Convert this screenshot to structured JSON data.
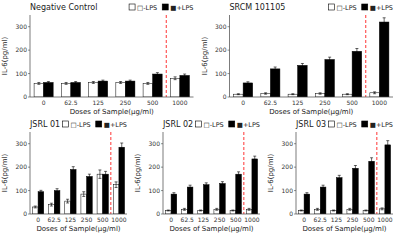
{
  "chart_data": [
    {
      "type": "bar",
      "title": "Negative Control",
      "xlabel": "Doses of Sample(μg/ml)",
      "ylabel": "IL-6(pg/ml)",
      "categories": [
        "0",
        "62.5",
        "125",
        "250",
        "500",
        "1000"
      ],
      "series": [
        {
          "name": "□-LPS",
          "color": "white",
          "values": [
            58,
            58,
            62,
            62,
            58,
            80
          ],
          "errors": [
            4,
            4,
            4,
            4,
            4,
            6
          ]
        },
        {
          "name": "■+LPS",
          "color": "black",
          "values": [
            62,
            62,
            68,
            68,
            98,
            92
          ],
          "errors": [
            4,
            4,
            4,
            4,
            6,
            6
          ]
        }
      ],
      "ylim": [
        0,
        350
      ],
      "yticks": [
        0,
        100,
        200,
        300
      ],
      "legend": "upper right"
    },
    {
      "type": "bar",
      "title": "SRCM 101105",
      "xlabel": "Doses of Sample(μg/ml)",
      "ylabel": "IL-6(pg/ml)",
      "categories": [
        "0",
        "62.5",
        "125",
        "250",
        "500",
        "1000"
      ],
      "series": [
        {
          "name": "□-LPS",
          "color": "white",
          "values": [
            12,
            15,
            12,
            15,
            12,
            18
          ],
          "errors": [
            2,
            3,
            2,
            3,
            2,
            4
          ]
        },
        {
          "name": "■+LPS",
          "color": "black",
          "values": [
            60,
            120,
            135,
            160,
            195,
            320
          ],
          "errors": [
            5,
            8,
            8,
            10,
            12,
            18
          ]
        }
      ],
      "ylim": [
        0,
        350
      ],
      "yticks": [
        0,
        100,
        200,
        300
      ],
      "legend": "upper right"
    },
    {
      "type": "bar",
      "title": "JSRL 01",
      "xlabel": "Doses of Sample(μg/ml)",
      "ylabel": "IL-6(pg/ml)",
      "categories": [
        "0",
        "62.5",
        "125",
        "250",
        "500",
        "1000"
      ],
      "series": [
        {
          "name": "□-LPS",
          "color": "white",
          "values": [
            30,
            40,
            55,
            85,
            170,
            125
          ],
          "errors": [
            4,
            6,
            8,
            10,
            18,
            12
          ]
        },
        {
          "name": "■+LPS",
          "color": "black",
          "values": [
            95,
            100,
            190,
            160,
            170,
            285
          ],
          "errors": [
            6,
            8,
            12,
            10,
            12,
            18
          ]
        }
      ],
      "ylim": [
        0,
        350
      ],
      "yticks": [
        0,
        100,
        200,
        300
      ],
      "legend": "upper right"
    },
    {
      "type": "bar",
      "title": "JSRL 02",
      "xlabel": "Doses of Sample(μg/ml)",
      "ylabel": "IL-6(pg/ml)",
      "categories": [
        "0",
        "62.5",
        "125",
        "250",
        "500",
        "1000"
      ],
      "series": [
        {
          "name": "□-LPS",
          "color": "white",
          "values": [
            15,
            20,
            15,
            20,
            15,
            20
          ],
          "errors": [
            2,
            4,
            2,
            4,
            2,
            4
          ]
        },
        {
          "name": "■+LPS",
          "color": "black",
          "values": [
            85,
            115,
            125,
            130,
            170,
            235
          ],
          "errors": [
            6,
            8,
            8,
            8,
            10,
            12
          ]
        }
      ],
      "ylim": [
        0,
        350
      ],
      "yticks": [
        0,
        100,
        200,
        300
      ],
      "legend": "upper right"
    },
    {
      "type": "bar",
      "title": "JSRL 03",
      "xlabel": "Doses of Sample(μg/ml)",
      "ylabel": "IL-6(pg/ml)",
      "categories": [
        "0",
        "62.5",
        "125",
        "250",
        "500",
        "1000"
      ],
      "series": [
        {
          "name": "□-LPS",
          "color": "white",
          "values": [
            15,
            20,
            15,
            20,
            15,
            22
          ],
          "errors": [
            2,
            4,
            2,
            4,
            2,
            4
          ]
        },
        {
          "name": "■+LPS",
          "color": "black",
          "values": [
            85,
            115,
            155,
            195,
            225,
            295
          ],
          "errors": [
            6,
            8,
            10,
            12,
            15,
            18
          ]
        }
      ],
      "ylim": [
        0,
        350
      ],
      "yticks": [
        0,
        100,
        200,
        300
      ],
      "legend": "upper right"
    }
  ]
}
